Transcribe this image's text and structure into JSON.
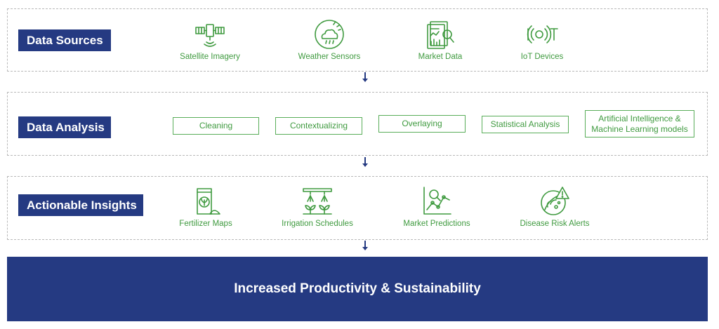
{
  "sources": {
    "label": "Data Sources",
    "items": [
      {
        "label": "Satellite Imagery",
        "icon": "satellite-icon"
      },
      {
        "label": "Weather Sensors",
        "icon": "weather-sensor-icon"
      },
      {
        "label": "Market Data",
        "icon": "market-data-icon"
      },
      {
        "label": "IoT Devices",
        "icon": "iot-icon"
      }
    ]
  },
  "analysis": {
    "label": "Data Analysis",
    "items": [
      {
        "label": "Cleaning"
      },
      {
        "label": "Contextualizing"
      },
      {
        "label": "Overlaying"
      },
      {
        "label": "Statistical Analysis"
      },
      {
        "label": "Artificial Intelligence & Machine Learning models"
      }
    ]
  },
  "insights": {
    "label": "Actionable Insights",
    "items": [
      {
        "label": "Fertilizer Maps",
        "icon": "fertilizer-bag-icon"
      },
      {
        "label": "Irrigation Schedules",
        "icon": "irrigation-icon"
      },
      {
        "label": "Market Predictions",
        "icon": "market-prediction-icon"
      },
      {
        "label": "Disease Risk Alerts",
        "icon": "disease-alert-icon"
      }
    ]
  },
  "outcome": {
    "label": "Increased Productivity & Sustainability"
  },
  "colors": {
    "navy": "#253a82",
    "green": "#3f9a3f",
    "border": "#b9b9b9"
  }
}
